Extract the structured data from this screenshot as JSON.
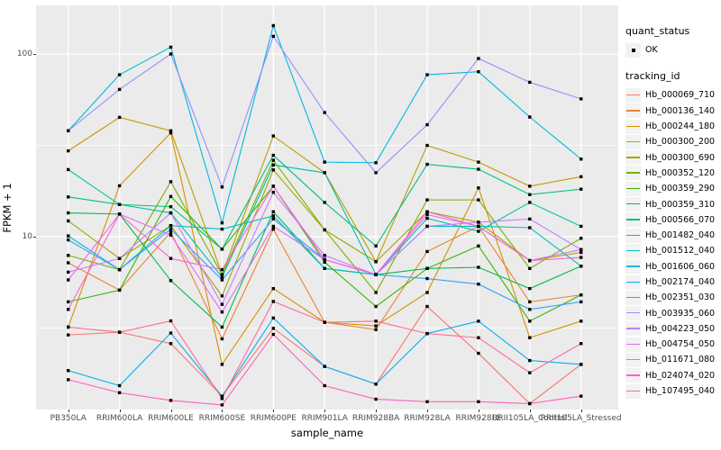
{
  "colors": {
    "panel_bg": "#EBEBEB",
    "grid": "#FFFFFF",
    "point": "#000000",
    "tick_text": "#4D4D4D"
  },
  "y_axis": {
    "title": "FPKM + 1",
    "ticks": [
      {
        "label": "100",
        "value": 100
      },
      {
        "label": "10",
        "value": 10
      }
    ]
  },
  "x_axis": {
    "title": "sample_name"
  },
  "legend": {
    "quant": {
      "title": "quant_status",
      "ok_label": "OK"
    },
    "tracking": {
      "title": "tracking_id"
    }
  },
  "chart_data": {
    "type": "line",
    "title": "",
    "xlabel": "sample_name",
    "ylabel": "FPKM + 1",
    "y_scale": "log10",
    "ylim": [
      1.1,
      190
    ],
    "grid": true,
    "legend_position": "right",
    "quant_status": "OK",
    "categories": [
      "PB350LA",
      "RRIM600LA",
      "RRIM600LE",
      "RRIM600SE",
      "RRIM600PE",
      "RRIM901LA",
      "RRIM928BA",
      "RRIM928LA",
      "RRIM928LE",
      "RRII105LA_Control",
      "RRII105LA_Stressed"
    ],
    "series": [
      {
        "name": "Hb_000069_710",
        "color": "#F8766D",
        "values": [
          2.9,
          3.0,
          2.6,
          1.34,
          3.15,
          1.95,
          1.56,
          4.15,
          2.3,
          1.22,
          2.0
        ]
      },
      {
        "name": "Hb_000136_140",
        "color": "#EA8331",
        "values": [
          7.2,
          5.1,
          10.6,
          2.76,
          11.0,
          3.4,
          3.1,
          8.3,
          11.4,
          4.4,
          4.8
        ]
      },
      {
        "name": "Hb_000244_180",
        "color": "#D89000",
        "values": [
          3.2,
          19.0,
          37.0,
          2.0,
          5.2,
          3.4,
          3.25,
          4.95,
          18.5,
          2.8,
          3.45
        ]
      },
      {
        "name": "Hb_000300_200",
        "color": "#C09B00",
        "values": [
          29.5,
          45.0,
          38.0,
          6.2,
          35.6,
          22.4,
          7.3,
          31.6,
          25.6,
          18.9,
          21.3
        ]
      },
      {
        "name": "Hb_000300_690",
        "color": "#A3A500",
        "values": [
          12.2,
          7.6,
          11.5,
          4.74,
          23.2,
          10.9,
          7.3,
          13.7,
          12.0,
          7.4,
          8.2
        ]
      },
      {
        "name": "Hb_000352_120",
        "color": "#7CAE00",
        "values": [
          7.9,
          6.6,
          20.0,
          6.2,
          26.2,
          10.9,
          4.95,
          15.9,
          15.9,
          6.7,
          9.8
        ]
      },
      {
        "name": "Hb_000359_290",
        "color": "#39B600",
        "values": [
          4.4,
          5.1,
          16.6,
          8.55,
          18.9,
          7.25,
          4.15,
          6.7,
          8.9,
          3.45,
          4.8
        ]
      },
      {
        "name": "Hb_000359_310",
        "color": "#00BB4E",
        "values": [
          13.5,
          13.3,
          5.75,
          3.2,
          13.7,
          6.7,
          6.2,
          6.7,
          6.8,
          5.2,
          6.9
        ]
      },
      {
        "name": "Hb_000566_070",
        "color": "#00BF7D",
        "values": [
          16.5,
          15.0,
          14.6,
          8.55,
          27.9,
          15.4,
          8.9,
          24.9,
          23.4,
          17.0,
          18.2
        ]
      },
      {
        "name": "Hb_001482_040",
        "color": "#00C1A3",
        "values": [
          23.3,
          15.0,
          13.5,
          6.0,
          24.7,
          22.4,
          6.2,
          12.6,
          10.7,
          15.4,
          11.4
        ]
      },
      {
        "name": "Hb_001512_040",
        "color": "#00BFC4",
        "values": [
          10.1,
          6.6,
          11.5,
          11.0,
          13.0,
          6.7,
          6.2,
          11.4,
          11.4,
          11.2,
          6.9
        ]
      },
      {
        "name": "Hb_001606_060",
        "color": "#00BAE0",
        "values": [
          38.0,
          77.0,
          109.0,
          11.9,
          143.0,
          25.6,
          25.4,
          77.0,
          80.0,
          45.2,
          26.6
        ]
      },
      {
        "name": "Hb_002174_040",
        "color": "#00B0F6",
        "values": [
          1.85,
          1.53,
          2.97,
          1.34,
          3.59,
          1.95,
          1.56,
          2.95,
          3.45,
          2.1,
          2.0
        ]
      },
      {
        "name": "Hb_002351_030",
        "color": "#35A2FF",
        "values": [
          9.6,
          6.6,
          11.0,
          5.8,
          12.5,
          7.5,
          6.2,
          5.9,
          5.5,
          4.0,
          4.4
        ]
      },
      {
        "name": "Hb_003935_060",
        "color": "#9590FF",
        "values": [
          38.0,
          64.0,
          100.0,
          18.7,
          125.0,
          47.8,
          22.4,
          41.0,
          94.5,
          70.0,
          56.8
        ]
      },
      {
        "name": "Hb_004223_050",
        "color": "#C77CFF",
        "values": [
          6.4,
          7.6,
          13.5,
          4.26,
          17.5,
          7.9,
          6.2,
          11.4,
          12.0,
          12.5,
          8.5
        ]
      },
      {
        "name": "Hb_004754_050",
        "color": "#E76BF3",
        "values": [
          5.8,
          13.3,
          10.2,
          3.87,
          11.4,
          7.5,
          6.2,
          13.2,
          11.4,
          7.4,
          8.5
        ]
      },
      {
        "name": "Hb_011671_080",
        "color": "#FA62DB",
        "values": [
          4.0,
          13.3,
          7.6,
          6.6,
          18.9,
          7.5,
          6.2,
          13.7,
          11.4,
          7.4,
          7.7
        ]
      },
      {
        "name": "Hb_024074_020",
        "color": "#FF62BC",
        "values": [
          1.65,
          1.4,
          1.27,
          1.2,
          2.92,
          1.53,
          1.29,
          1.25,
          1.25,
          1.22,
          1.34
        ]
      },
      {
        "name": "Hb_107495_040",
        "color": "#FF6A98",
        "values": [
          3.2,
          3.0,
          3.46,
          1.3,
          4.42,
          3.4,
          3.45,
          2.95,
          2.8,
          1.8,
          2.6
        ]
      }
    ]
  }
}
